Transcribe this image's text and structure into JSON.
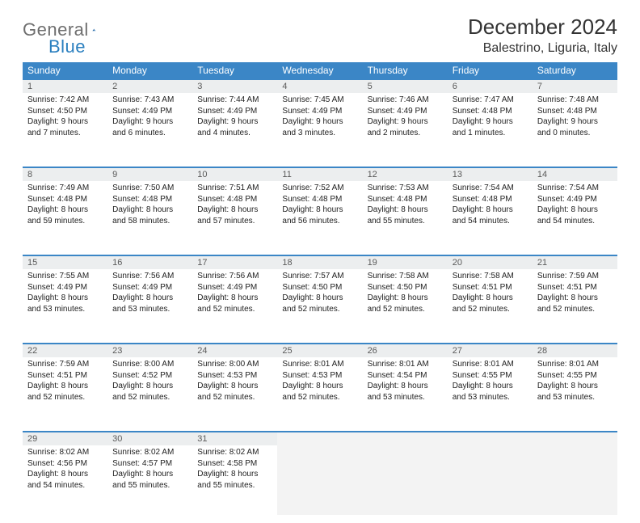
{
  "brand": {
    "part1": "General",
    "part2": "Blue"
  },
  "title": "December 2024",
  "location": "Balestrino, Liguria, Italy",
  "colors": {
    "header_bg": "#3b86c6",
    "header_text": "#ffffff",
    "daynum_bg": "#eceeef",
    "daynum_border": "#3b86c6",
    "text": "#222222",
    "logo_gray": "#6e6e6e",
    "logo_blue": "#2a7fbf",
    "background": "#ffffff",
    "empty_bg": "#f3f3f3"
  },
  "fonts": {
    "title_size_pt": 20,
    "location_size_pt": 12,
    "header_size_pt": 9,
    "cell_size_pt": 7.5
  },
  "weekdays": [
    "Sunday",
    "Monday",
    "Tuesday",
    "Wednesday",
    "Thursday",
    "Friday",
    "Saturday"
  ],
  "weeks": [
    [
      {
        "n": "1",
        "sr": "7:42 AM",
        "ss": "4:50 PM",
        "dh": "9",
        "dm": "7"
      },
      {
        "n": "2",
        "sr": "7:43 AM",
        "ss": "4:49 PM",
        "dh": "9",
        "dm": "6"
      },
      {
        "n": "3",
        "sr": "7:44 AM",
        "ss": "4:49 PM",
        "dh": "9",
        "dm": "4"
      },
      {
        "n": "4",
        "sr": "7:45 AM",
        "ss": "4:49 PM",
        "dh": "9",
        "dm": "3"
      },
      {
        "n": "5",
        "sr": "7:46 AM",
        "ss": "4:49 PM",
        "dh": "9",
        "dm": "2"
      },
      {
        "n": "6",
        "sr": "7:47 AM",
        "ss": "4:48 PM",
        "dh": "9",
        "dm": "1"
      },
      {
        "n": "7",
        "sr": "7:48 AM",
        "ss": "4:48 PM",
        "dh": "9",
        "dm": "0"
      }
    ],
    [
      {
        "n": "8",
        "sr": "7:49 AM",
        "ss": "4:48 PM",
        "dh": "8",
        "dm": "59"
      },
      {
        "n": "9",
        "sr": "7:50 AM",
        "ss": "4:48 PM",
        "dh": "8",
        "dm": "58"
      },
      {
        "n": "10",
        "sr": "7:51 AM",
        "ss": "4:48 PM",
        "dh": "8",
        "dm": "57"
      },
      {
        "n": "11",
        "sr": "7:52 AM",
        "ss": "4:48 PM",
        "dh": "8",
        "dm": "56"
      },
      {
        "n": "12",
        "sr": "7:53 AM",
        "ss": "4:48 PM",
        "dh": "8",
        "dm": "55"
      },
      {
        "n": "13",
        "sr": "7:54 AM",
        "ss": "4:48 PM",
        "dh": "8",
        "dm": "54"
      },
      {
        "n": "14",
        "sr": "7:54 AM",
        "ss": "4:49 PM",
        "dh": "8",
        "dm": "54"
      }
    ],
    [
      {
        "n": "15",
        "sr": "7:55 AM",
        "ss": "4:49 PM",
        "dh": "8",
        "dm": "53"
      },
      {
        "n": "16",
        "sr": "7:56 AM",
        "ss": "4:49 PM",
        "dh": "8",
        "dm": "53"
      },
      {
        "n": "17",
        "sr": "7:56 AM",
        "ss": "4:49 PM",
        "dh": "8",
        "dm": "52"
      },
      {
        "n": "18",
        "sr": "7:57 AM",
        "ss": "4:50 PM",
        "dh": "8",
        "dm": "52"
      },
      {
        "n": "19",
        "sr": "7:58 AM",
        "ss": "4:50 PM",
        "dh": "8",
        "dm": "52"
      },
      {
        "n": "20",
        "sr": "7:58 AM",
        "ss": "4:51 PM",
        "dh": "8",
        "dm": "52"
      },
      {
        "n": "21",
        "sr": "7:59 AM",
        "ss": "4:51 PM",
        "dh": "8",
        "dm": "52"
      }
    ],
    [
      {
        "n": "22",
        "sr": "7:59 AM",
        "ss": "4:51 PM",
        "dh": "8",
        "dm": "52"
      },
      {
        "n": "23",
        "sr": "8:00 AM",
        "ss": "4:52 PM",
        "dh": "8",
        "dm": "52"
      },
      {
        "n": "24",
        "sr": "8:00 AM",
        "ss": "4:53 PM",
        "dh": "8",
        "dm": "52"
      },
      {
        "n": "25",
        "sr": "8:01 AM",
        "ss": "4:53 PM",
        "dh": "8",
        "dm": "52"
      },
      {
        "n": "26",
        "sr": "8:01 AM",
        "ss": "4:54 PM",
        "dh": "8",
        "dm": "53"
      },
      {
        "n": "27",
        "sr": "8:01 AM",
        "ss": "4:55 PM",
        "dh": "8",
        "dm": "53"
      },
      {
        "n": "28",
        "sr": "8:01 AM",
        "ss": "4:55 PM",
        "dh": "8",
        "dm": "53"
      }
    ],
    [
      {
        "n": "29",
        "sr": "8:02 AM",
        "ss": "4:56 PM",
        "dh": "8",
        "dm": "54"
      },
      {
        "n": "30",
        "sr": "8:02 AM",
        "ss": "4:57 PM",
        "dh": "8",
        "dm": "55"
      },
      {
        "n": "31",
        "sr": "8:02 AM",
        "ss": "4:58 PM",
        "dh": "8",
        "dm": "55"
      },
      null,
      null,
      null,
      null
    ]
  ],
  "labels": {
    "sunrise": "Sunrise:",
    "sunset": "Sunset:",
    "daylight": "Daylight:",
    "hours": "hours",
    "and": "and",
    "minutes": "minutes."
  }
}
